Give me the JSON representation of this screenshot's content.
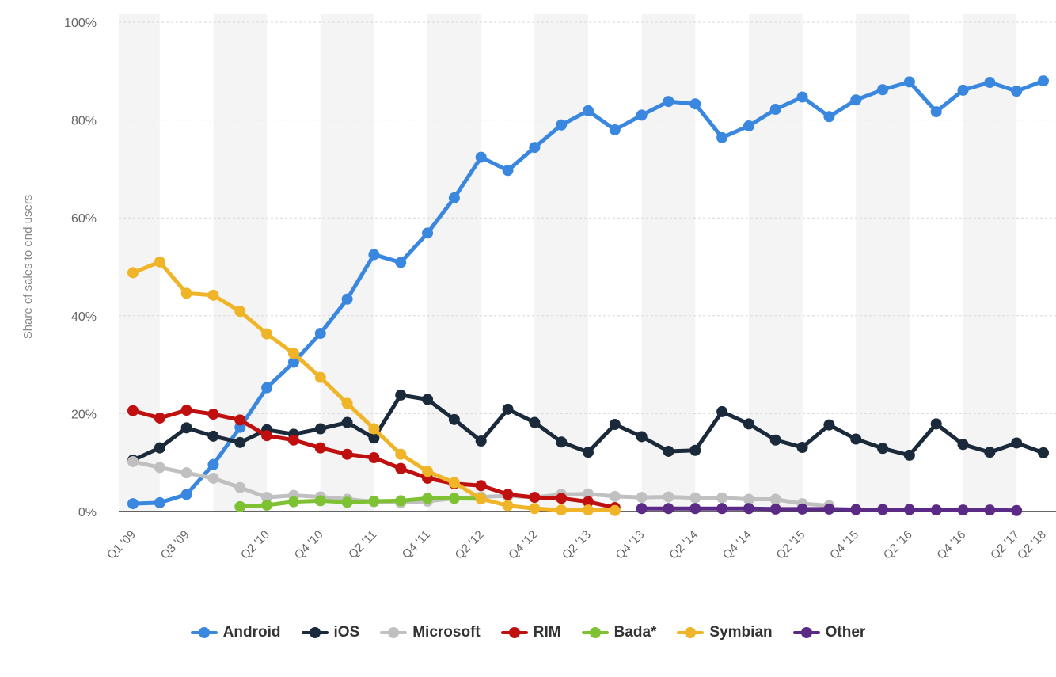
{
  "chart_data": {
    "type": "line",
    "ylabel": "Share of sales to end users",
    "ylim": [
      0,
      100
    ],
    "yticks": [
      "0%",
      "20%",
      "40%",
      "60%",
      "80%",
      "100%"
    ],
    "x_labels_shown": [
      "Q1 '09",
      "Q3 '09",
      "Q2 '10",
      "Q4 '10",
      "Q2 '11",
      "Q4 '11",
      "Q2 '12",
      "Q4 '12",
      "Q2 '13",
      "Q4 '13",
      "Q2 '14",
      "Q4 '14",
      "Q2 '15",
      "Q4 '15",
      "Q2 '16",
      "Q4 '16",
      "Q2 '17",
      "Q2 '18"
    ],
    "grid": true,
    "legend_position": "bottom",
    "series": [
      {
        "name": "Android",
        "color": "#3a87e0",
        "start_index": 0,
        "values": [
          1.6,
          1.8,
          3.5,
          9.6,
          17.2,
          25.3,
          30.5,
          36.4,
          43.4,
          52.5,
          50.9,
          56.9,
          64.1,
          72.4,
          69.7,
          74.4,
          79.0,
          81.9,
          78.0,
          81.0,
          83.8,
          83.3,
          76.4,
          78.8,
          82.2,
          84.7,
          80.7,
          84.1,
          86.2,
          87.8,
          81.7,
          86.1,
          87.7,
          85.9,
          88.0
        ]
      },
      {
        "name": "iOS",
        "color": "#1b2a3a",
        "start_index": 0,
        "values": [
          10.5,
          13.0,
          17.1,
          15.4,
          14.1,
          16.7,
          15.8,
          16.9,
          18.2,
          15.0,
          23.8,
          22.9,
          18.8,
          14.4,
          20.9,
          18.2,
          14.2,
          12.1,
          17.8,
          15.3,
          12.3,
          12.5,
          20.4,
          17.9,
          14.6,
          13.1,
          17.7,
          14.8,
          12.9,
          11.5,
          17.9,
          13.7,
          12.1,
          14.0,
          12.0
        ]
      },
      {
        "name": "Microsoft",
        "color": "#c0c0c0",
        "start_index": 0,
        "values": [
          10.2,
          9.0,
          7.9,
          6.8,
          4.9,
          2.9,
          3.3,
          3.0,
          2.5,
          2.0,
          1.8,
          2.1,
          2.7,
          3.0,
          3.2,
          2.9,
          3.5,
          3.6,
          3.1,
          2.9,
          3.0,
          2.8,
          2.8,
          2.5,
          2.5,
          1.6,
          1.2
        ]
      },
      {
        "name": "RIM",
        "color": "#c00f0f",
        "start_index": 0,
        "values": [
          20.6,
          19.1,
          20.7,
          19.9,
          18.7,
          15.5,
          14.6,
          13.0,
          11.7,
          11.0,
          8.8,
          6.8,
          5.7,
          5.3,
          3.5,
          2.9,
          2.7,
          2.0,
          0.8
        ]
      },
      {
        "name": "Bada*",
        "color": "#7ec234",
        "start_index": 4,
        "values": [
          1.0,
          1.3,
          2.0,
          2.2,
          1.9,
          2.1,
          2.2,
          2.7,
          2.7,
          2.6
        ]
      },
      {
        "name": "Symbian",
        "color": "#f0b429",
        "start_index": 0,
        "values": [
          48.8,
          51.0,
          44.6,
          44.2,
          40.9,
          36.3,
          32.3,
          27.4,
          22.1,
          16.9,
          11.7,
          8.2,
          5.9,
          2.6,
          1.2,
          0.6,
          0.3,
          0.3,
          0.2
        ]
      },
      {
        "name": "Other",
        "color": "#5b2a86",
        "start_index": 19,
        "values": [
          0.6,
          0.6,
          0.6,
          0.6,
          0.6,
          0.5,
          0.5,
          0.5,
          0.4,
          0.4,
          0.4,
          0.3,
          0.3,
          0.3,
          0.2
        ]
      }
    ]
  }
}
